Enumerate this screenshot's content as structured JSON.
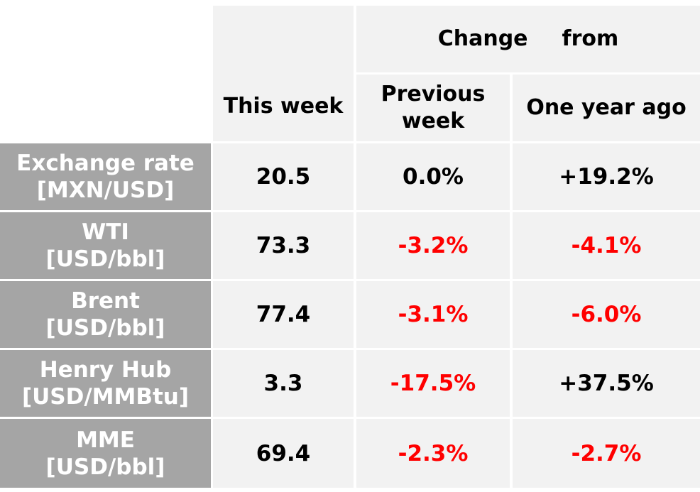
{
  "table": {
    "header": {
      "group_word1": "Change",
      "group_word2": "from",
      "this_week": "This week",
      "previous_week_line1": "Previous",
      "previous_week_line2": "week",
      "one_year_ago": "One year ago"
    },
    "rows": [
      {
        "name_line1": "Exchange rate",
        "name_line2": "[MXN/USD]",
        "this_week": "20.5",
        "prev": "0.0%",
        "prev_negative": false,
        "year": "+19.2%",
        "year_negative": false
      },
      {
        "name_line1": "WTI",
        "name_line2": "[USD/bbl]",
        "this_week": "73.3",
        "prev": "-3.2%",
        "prev_negative": true,
        "year": "-4.1%",
        "year_negative": true
      },
      {
        "name_line1": "Brent",
        "name_line2": "[USD/bbl]",
        "this_week": "77.4",
        "prev": "-3.1%",
        "prev_negative": true,
        "year": "-6.0%",
        "year_negative": true
      },
      {
        "name_line1": "Henry Hub",
        "name_line2": "[USD/MMBtu]",
        "this_week": "3.3",
        "prev": "-17.5%",
        "prev_negative": true,
        "year": "+37.5%",
        "year_negative": false
      },
      {
        "name_line1": "MME",
        "name_line2": "[USD/bbl]",
        "this_week": "69.4",
        "prev": "-2.3%",
        "prev_negative": true,
        "year": "-2.7%",
        "year_negative": true
      }
    ],
    "colors": {
      "row_header_bg": "#a5a5a5",
      "cell_bg": "#f2f2f2",
      "negative_text": "#ff0000",
      "positive_text": "#000000"
    }
  }
}
